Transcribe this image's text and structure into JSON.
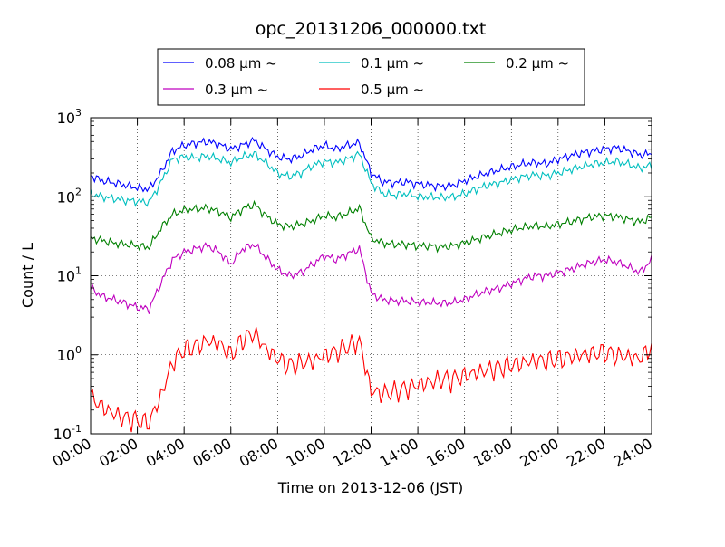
{
  "chart_data": {
    "type": "line",
    "title": "opc_20131206_000000.txt",
    "xlabel": "Time on 2013-12-06 (JST)",
    "ylabel": "Count / L",
    "y_scale": "log",
    "ylim": [
      0.1,
      1000
    ],
    "xlim": [
      "00:00",
      "24:00"
    ],
    "grid": true,
    "grid_style": "dotted",
    "legend_position": "top-center, above plot, 3 columns",
    "x_tick_labels": [
      "00:00",
      "02:00",
      "04:00",
      "06:00",
      "08:00",
      "10:00",
      "12:00",
      "14:00",
      "16:00",
      "18:00",
      "20:00",
      "22:00",
      "24:00"
    ],
    "y_ticks": [
      {
        "base": "10",
        "exp": "-1"
      },
      {
        "base": "10",
        "exp": "0"
      },
      {
        "base": "10",
        "exp": "1"
      },
      {
        "base": "10",
        "exp": "2"
      },
      {
        "base": "10",
        "exp": "3"
      }
    ],
    "x": [
      0,
      0.5,
      1,
      1.5,
      2,
      2.5,
      3,
      3.5,
      4,
      4.5,
      5,
      5.5,
      6,
      6.5,
      7,
      7.5,
      8,
      8.5,
      9,
      9.5,
      10,
      10.5,
      11,
      11.5,
      12,
      12.5,
      13,
      13.5,
      14,
      14.5,
      15,
      15.5,
      16,
      16.5,
      17,
      17.5,
      18,
      18.5,
      19,
      19.5,
      20,
      20.5,
      21,
      21.5,
      22,
      22.5,
      23,
      23.5,
      24
    ],
    "series": [
      {
        "name": "0.08 μm ~",
        "color": "#0000ff",
        "values": [
          185,
          160,
          150,
          140,
          130,
          125,
          200,
          380,
          450,
          480,
          500,
          460,
          400,
          450,
          520,
          400,
          320,
          300,
          330,
          400,
          450,
          400,
          450,
          480,
          200,
          155,
          150,
          155,
          145,
          140,
          135,
          140,
          160,
          180,
          200,
          220,
          240,
          260,
          270,
          260,
          300,
          330,
          360,
          380,
          400,
          420,
          380,
          340,
          350
        ]
      },
      {
        "name": "0.1 μm ~",
        "color": "#00bfbf",
        "values": [
          110,
          100,
          95,
          90,
          88,
          85,
          150,
          300,
          320,
          310,
          330,
          300,
          270,
          320,
          350,
          270,
          200,
          180,
          200,
          250,
          280,
          270,
          300,
          350,
          150,
          110,
          105,
          110,
          100,
          100,
          98,
          100,
          110,
          125,
          140,
          150,
          165,
          180,
          190,
          185,
          200,
          220,
          240,
          260,
          270,
          280,
          260,
          230,
          250
        ]
      },
      {
        "name": "0.2 μm ~",
        "color": "#008000",
        "values": [
          30,
          28,
          26,
          25,
          24,
          23,
          40,
          60,
          68,
          70,
          72,
          65,
          55,
          70,
          80,
          58,
          45,
          42,
          45,
          50,
          58,
          55,
          62,
          72,
          30,
          26,
          25,
          25,
          24,
          24,
          23,
          24,
          26,
          29,
          32,
          35,
          38,
          41,
          43,
          42,
          45,
          48,
          52,
          56,
          58,
          56,
          52,
          48,
          55
        ]
      },
      {
        "name": "0.3 μm ~",
        "color": "#bf00bf",
        "values": [
          7,
          5.5,
          5,
          4.5,
          4,
          3.8,
          8,
          16,
          20,
          22,
          24,
          20,
          14,
          22,
          25,
          17,
          12,
          10,
          11,
          14,
          18,
          16,
          19,
          22,
          6,
          5,
          4.8,
          4.8,
          4.6,
          4.6,
          4.5,
          4.6,
          5,
          5.8,
          6.5,
          7,
          8,
          9,
          10,
          10,
          11,
          12,
          13.5,
          15,
          16,
          15,
          13,
          11,
          16
        ]
      },
      {
        "name": "0.5 μm ~",
        "color": "#ff0000",
        "values": [
          0.3,
          0.22,
          0.18,
          0.16,
          0.15,
          0.14,
          0.3,
          0.8,
          1.2,
          1.3,
          1.5,
          1.4,
          1.0,
          1.6,
          1.9,
          1.2,
          0.9,
          0.75,
          0.8,
          0.85,
          1.0,
          1.1,
          1.3,
          1.5,
          0.35,
          0.33,
          0.35,
          0.38,
          0.42,
          0.45,
          0.5,
          0.5,
          0.55,
          0.6,
          0.65,
          0.7,
          0.75,
          0.8,
          0.85,
          0.85,
          0.9,
          0.95,
          1.0,
          1.05,
          1.1,
          1.0,
          0.95,
          0.9,
          1.3
        ]
      }
    ]
  }
}
